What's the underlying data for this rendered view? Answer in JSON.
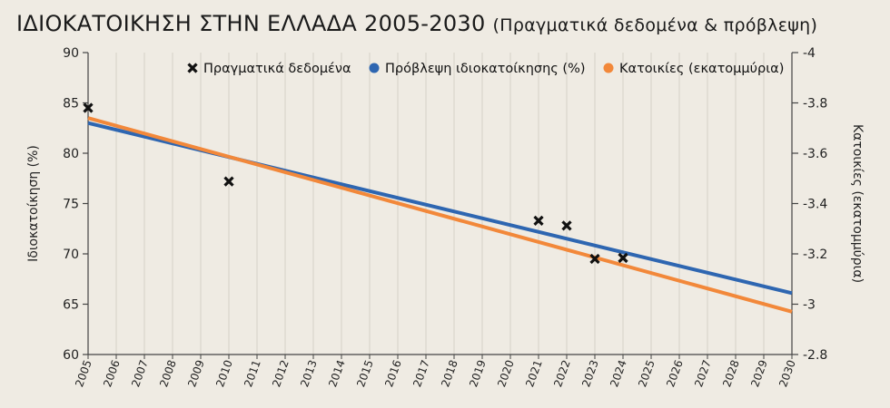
{
  "title": {
    "main": "ΙΔΙΟΚΑΤΟΙΚΗΣΗ ΣΤΗΝ ΕΛΛΑΔΑ 2005-2030",
    "sub": "(Πραγματικά δεδομένα & πρόβλεψη)"
  },
  "colors": {
    "background": "#efebe3",
    "grid": "#d6d1c7",
    "blue": "#2e66b1",
    "orange": "#f2883a",
    "marker": "#111111"
  },
  "chart_data": {
    "type": "line",
    "title": "ΙΔΙΟΚΑΤΟΙΚΗΣΗ ΣΤΗΝ ΕΛΛΑΔΑ 2005-2030",
    "subtitle": "(Πραγματικά δεδομένα & πρόβλεψη)",
    "x": [
      2005,
      2006,
      2007,
      2008,
      2009,
      2010,
      2011,
      2012,
      2013,
      2014,
      2015,
      2016,
      2017,
      2018,
      2019,
      2020,
      2021,
      2022,
      2023,
      2024,
      2025,
      2026,
      2027,
      2028,
      2029,
      2030
    ],
    "xlim": [
      2005,
      2030
    ],
    "ylabel": "Ιδιοκατοίκηση (%)",
    "ylim": [
      60,
      90
    ],
    "yticks": [
      60,
      65,
      70,
      75,
      80,
      85,
      90
    ],
    "y2label": "Κατοικίες (εκατομμύρια)",
    "y2lim": [
      -2.8,
      -4
    ],
    "y2ticks": [
      "-2.8",
      "-3",
      "-3.2",
      "-3.4",
      "-3.6",
      "-3.8",
      "-4"
    ],
    "legend_position": "top",
    "grid": true,
    "series": [
      {
        "name": "Πραγματικά δεδομένα",
        "kind": "scatter",
        "marker": "x",
        "points": [
          {
            "x": 2005,
            "y": 84.5
          },
          {
            "x": 2010,
            "y": 77.2
          },
          {
            "x": 2021,
            "y": 73.3
          },
          {
            "x": 2022,
            "y": 72.8
          },
          {
            "x": 2023,
            "y": 69.5
          },
          {
            "x": 2024,
            "y": 69.6
          }
        ]
      },
      {
        "name": "Πρόβλεψη ιδιοκατοίκησης (%)",
        "kind": "line",
        "axis": "left",
        "color": "#2e66b1",
        "points": [
          {
            "x": 2005,
            "y": 83.0
          },
          {
            "x": 2030,
            "y": 66.1
          }
        ]
      },
      {
        "name": "Κατοικίες (εκατομμύρια)",
        "kind": "line",
        "axis": "right",
        "color": "#f2883a",
        "points": [
          {
            "x": 2005,
            "y": -3.74
          },
          {
            "x": 2030,
            "y": -2.97
          }
        ]
      }
    ]
  }
}
